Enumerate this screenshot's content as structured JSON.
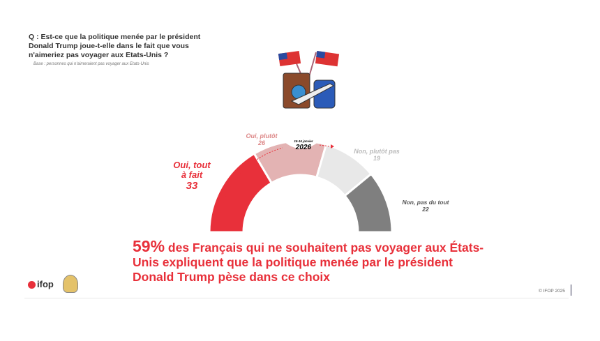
{
  "question": "Q : Est-ce que la politique menée par le président Donald Trump joue-t-elle dans le fait que vous n'aimeriez pas voyager aux Etats-Unis ?",
  "base": "Base : personnes qui n'aimeraient pas voyager aux Etats-Unis",
  "chart_data": {
    "type": "pie",
    "variant": "half-donut gauge",
    "categories": [
      "Oui, tout à fait",
      "Oui, plutôt",
      "Non, plutôt pas",
      "Non, pas du tout"
    ],
    "values": [
      33,
      26,
      19,
      22
    ],
    "colors": [
      "#e8303a",
      "#e3b3b3",
      "#e8e8e8",
      "#7f7f7f"
    ],
    "date_small": "15-16 janvier",
    "date_year": "2026"
  },
  "headline": {
    "big": "59%",
    "rest": " des Français qui ne souhaitent pas voyager aux États-Unis expliquent que la politique menée par le président Donald Trump pèse dans ce choix"
  },
  "footer": {
    "brand": "ifop",
    "copyright": "© IFOP 2025"
  }
}
